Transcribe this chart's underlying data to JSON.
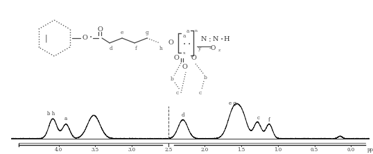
{
  "background_color": "#ffffff",
  "fig_width": 5.38,
  "fig_height": 2.22,
  "dpi": 100,
  "spectrum": {
    "x_ticks": [
      4.0,
      3.5,
      3.0,
      2.5,
      2.0,
      1.5,
      1.0,
      0.5,
      0.0
    ],
    "x_tick_labels": [
      "4.0",
      "3.5",
      "3.0",
      "2.5",
      "2.0",
      "1.5",
      "1.0",
      "0.5",
      "0.0"
    ]
  }
}
